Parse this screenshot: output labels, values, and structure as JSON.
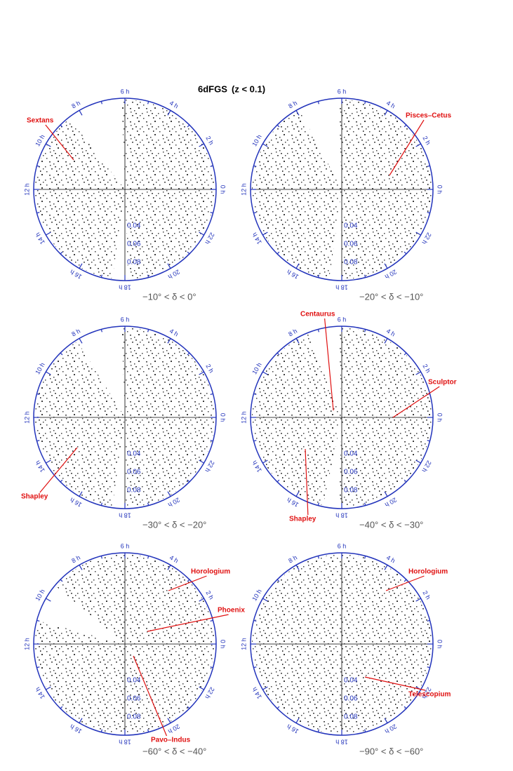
{
  "title": "6dFGS",
  "condition": "(z < 0.1)",
  "hour_labels": [
    "0 h",
    "2 h",
    "4 h",
    "6 h",
    "8 h",
    "10 h",
    "12 h",
    "14 h",
    "16 h",
    "18 h",
    "20 h",
    "22 h"
  ],
  "z_labels": [
    "0.04",
    "0.06",
    "0.08"
  ],
  "panels": [
    {
      "dec_range": "−10° < δ < 0°",
      "annotations": [
        "Sextans"
      ]
    },
    {
      "dec_range": "−20° < δ < −10°",
      "annotations": [
        "Pisces–Cetus"
      ]
    },
    {
      "dec_range": "−30° < δ < −20°",
      "annotations": [
        "Shapley"
      ]
    },
    {
      "dec_range": "−40° < δ < −30°",
      "annotations": [
        "Centaurus",
        "Sculptor",
        "Shapley"
      ]
    },
    {
      "dec_range": "−60° < δ < −40°",
      "annotations": [
        "Horologium",
        "Phoenix",
        "Pavo–Indus"
      ]
    },
    {
      "dec_range": "−90° < δ < −60°",
      "annotations": [
        "Horologium",
        "Telescopium"
      ]
    }
  ]
}
